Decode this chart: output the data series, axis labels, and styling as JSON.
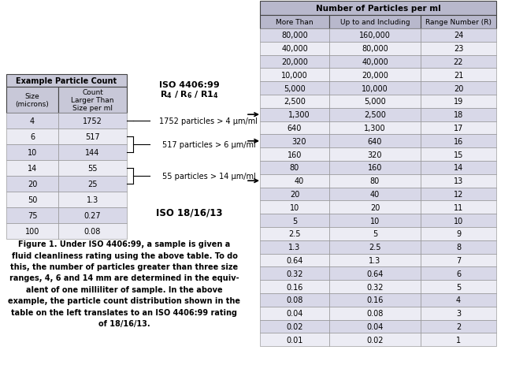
{
  "left_table_title": "Example Particle Count",
  "left_col1_header": "Size\n(microns)",
  "left_col2_header": "Count\nLarger Than\nSize per ml",
  "left_rows": [
    [
      "4",
      "1752"
    ],
    [
      "6",
      "517"
    ],
    [
      "10",
      "144"
    ],
    [
      "14",
      "55"
    ],
    [
      "20",
      "25"
    ],
    [
      "50",
      "1.3"
    ],
    [
      "75",
      "0.27"
    ],
    [
      "100",
      "0.08"
    ]
  ],
  "iso_label": "ISO 4406:99",
  "iso_result": "ISO 18/16/13",
  "annotations": [
    "1752 particles > 4 μm/ml",
    "517 particles > 6 μm/ml",
    "55 particles > 14 μm/ml"
  ],
  "right_table_main_header": "Number of Particles per ml",
  "right_col_headers": [
    "More Than",
    "Up to and Including",
    "Range Number (R)"
  ],
  "right_rows": [
    [
      "80,000",
      "160,000",
      "24"
    ],
    [
      "40,000",
      "80,000",
      "23"
    ],
    [
      "20,000",
      "40,000",
      "22"
    ],
    [
      "10,000",
      "20,000",
      "21"
    ],
    [
      "5,000",
      "10,000",
      "20"
    ],
    [
      "2,500",
      "5,000",
      "19"
    ],
    [
      "1,300",
      "2,500",
      "18"
    ],
    [
      "640",
      "1,300",
      "17"
    ],
    [
      "320",
      "640",
      "16"
    ],
    [
      "160",
      "320",
      "15"
    ],
    [
      "80",
      "160",
      "14"
    ],
    [
      "40",
      "80",
      "13"
    ],
    [
      "20",
      "40",
      "12"
    ],
    [
      "10",
      "20",
      "11"
    ],
    [
      "5",
      "10",
      "10"
    ],
    [
      "2.5",
      "5",
      "9"
    ],
    [
      "1.3",
      "2.5",
      "8"
    ],
    [
      "0.64",
      "1.3",
      "7"
    ],
    [
      "0.32",
      "0.64",
      "6"
    ],
    [
      "0.16",
      "0.32",
      "5"
    ],
    [
      "0.08",
      "0.16",
      "4"
    ],
    [
      "0.04",
      "0.08",
      "3"
    ],
    [
      "0.02",
      "0.04",
      "2"
    ],
    [
      "0.01",
      "0.02",
      "1"
    ]
  ],
  "arrow_rows": [
    6,
    8,
    11
  ],
  "figure_caption_lines": [
    "Figure 1. Under ISO 4406:99, a sample is given a",
    "fluid cleanliness rating using the above table. To do",
    "this, the number of particles greater than three size",
    "ranges, 4, 6 and 14 mm are determined in the equiv-",
    "alent of one milliliter of sample. In the above",
    "example, the particle count distribution shown in the",
    "table on the left translates to an ISO 4406:99 rating",
    "of 18/16/13."
  ],
  "bg_color": "#ffffff",
  "rt_header_bg": "#b8b8cc",
  "rt_row_alt1": "#d8d8e8",
  "rt_row_alt2": "#ececf4",
  "lt_header_bg": "#c8c8d8",
  "lt_row_alt1": "#d8d8e8",
  "lt_row_alt2": "#ebebf3"
}
